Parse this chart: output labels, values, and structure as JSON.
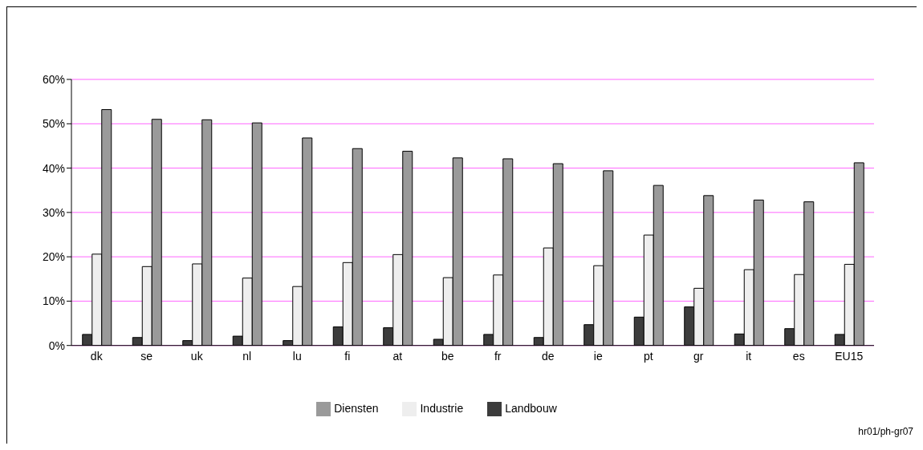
{
  "chart_data": {
    "type": "bar",
    "categories": [
      "dk",
      "se",
      "uk",
      "nl",
      "lu",
      "fi",
      "at",
      "be",
      "fr",
      "de",
      "ie",
      "pt",
      "gr",
      "it",
      "es",
      "EU15"
    ],
    "series": [
      {
        "name": "Landbouw",
        "color": "#3c3c3c",
        "values": [
          2.5,
          1.8,
          1.1,
          2.1,
          1.1,
          4.2,
          4.0,
          1.4,
          2.5,
          1.8,
          4.7,
          6.4,
          8.7,
          2.6,
          3.8,
          2.5
        ]
      },
      {
        "name": "Industrie",
        "color": "#eeeeee",
        "values": [
          20.6,
          17.8,
          18.4,
          15.2,
          13.3,
          18.7,
          20.5,
          15.3,
          15.9,
          22.0,
          18.0,
          24.9,
          12.9,
          17.1,
          16.0,
          18.3
        ]
      },
      {
        "name": "Diensten",
        "color": "#9a9a9a",
        "values": [
          53.2,
          51.0,
          50.9,
          50.2,
          46.8,
          44.4,
          43.8,
          42.3,
          42.1,
          41.0,
          39.4,
          36.1,
          33.8,
          32.8,
          32.4,
          41.2
        ]
      }
    ],
    "ylim": [
      0,
      60
    ],
    "yticks": [
      {
        "value": 0,
        "label": "0%"
      },
      {
        "value": 10,
        "label": "10%"
      },
      {
        "value": 20,
        "label": "20%"
      },
      {
        "value": 30,
        "label": "30%"
      },
      {
        "value": 40,
        "label": "40%"
      },
      {
        "value": 50,
        "label": "50%"
      },
      {
        "value": 60,
        "label": "60%"
      }
    ],
    "grid": "y",
    "legend": "bottom",
    "annotations": [
      "hr01/ph-gr07"
    ]
  }
}
